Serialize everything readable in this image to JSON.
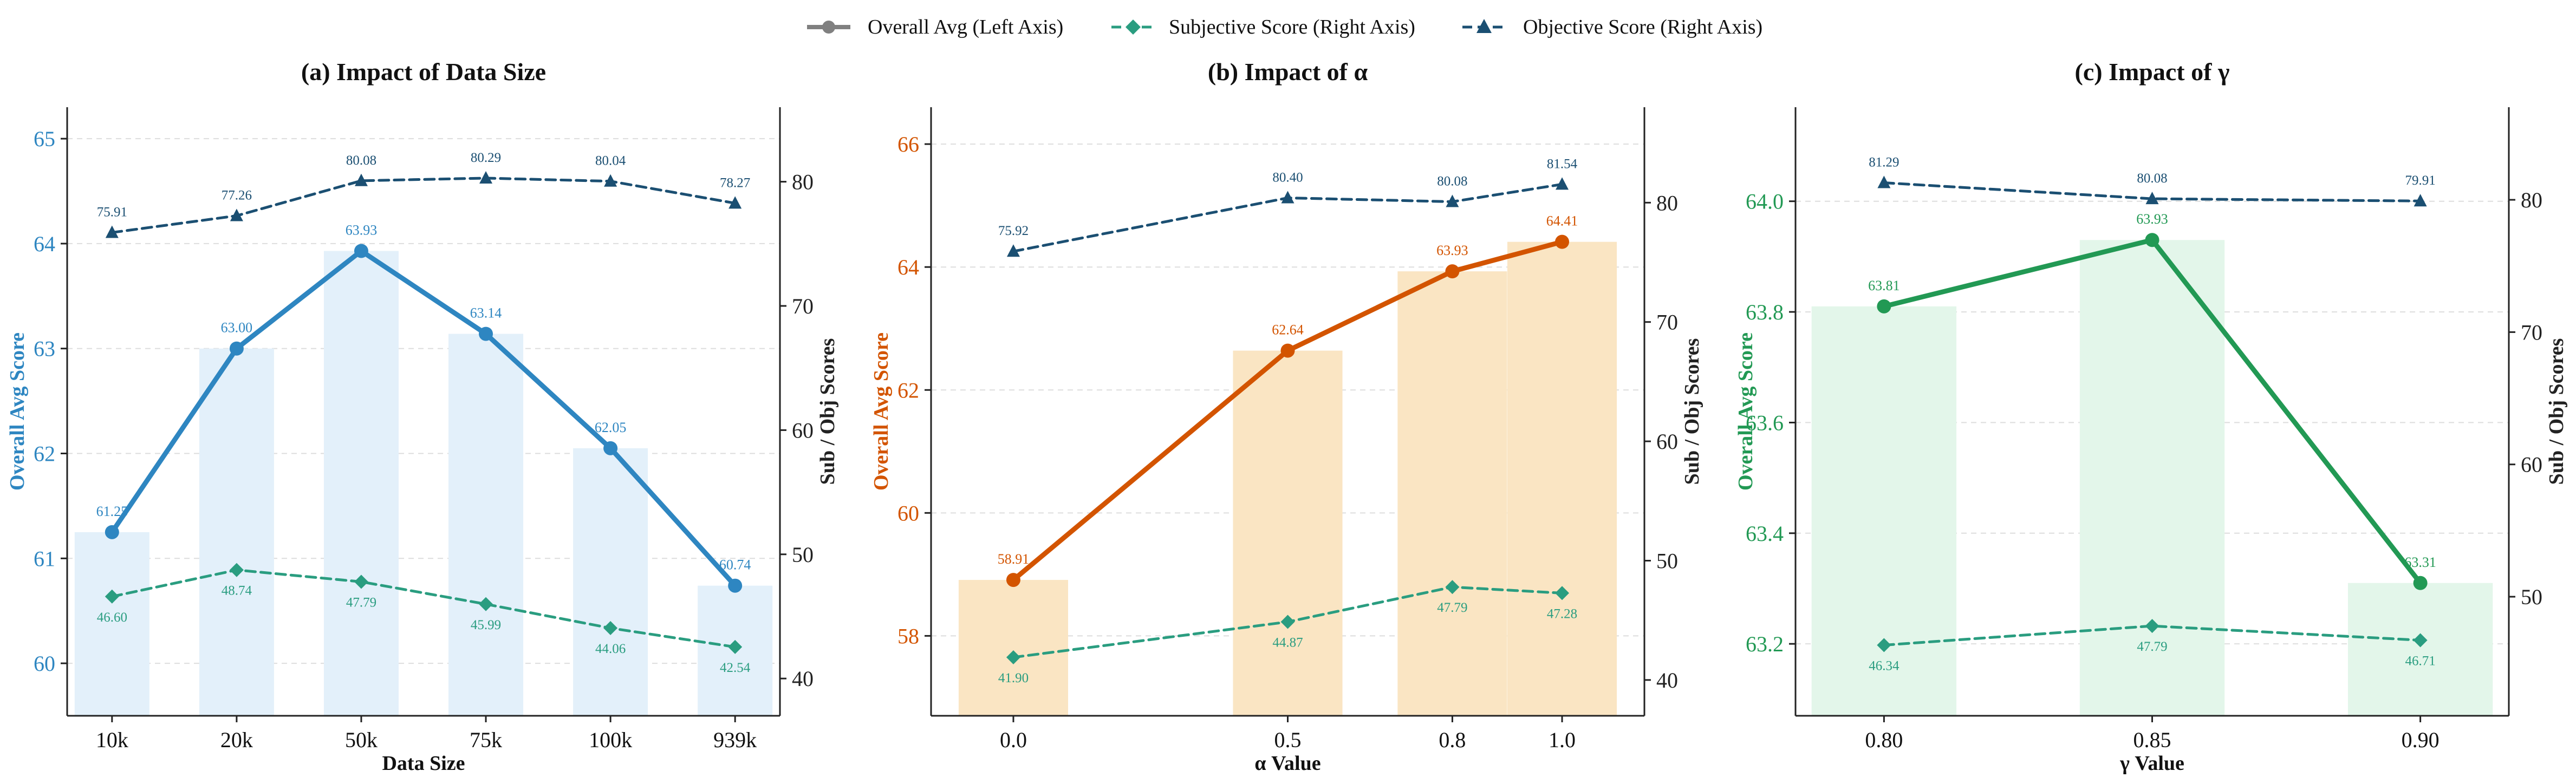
{
  "legend": {
    "items": [
      {
        "label": "Overall Avg (Left Axis)",
        "style": "solid",
        "marker": "circle",
        "color": "#808080"
      },
      {
        "label": "Subjective Score (Right Axis)",
        "style": "dashed",
        "marker": "diamond",
        "color": "#2a9d80"
      },
      {
        "label": "Objective Score (Right Axis)",
        "style": "dashed",
        "marker": "triangle",
        "color": "#1b4f72"
      }
    ]
  },
  "colors": {
    "subjective": "#2a9d80",
    "objective": "#1b4f72",
    "grid": "#dddddd"
  },
  "chart_data": [
    {
      "type": "bar+line",
      "title": "(a) Impact of Data Size",
      "xlabel": "Data Size",
      "ylabel_left": "Overall Avg Score",
      "ylabel_right": "Sub / Obj Scores",
      "categories": [
        "10k",
        "20k",
        "50k",
        "75k",
        "100k",
        "939k"
      ],
      "ylim_left": [
        59.5,
        65.3
      ],
      "yticks_left": [
        60,
        61,
        62,
        63,
        64,
        65
      ],
      "ylim_right": [
        37,
        86
      ],
      "yticks_right": [
        40,
        50,
        60,
        70,
        80
      ],
      "accent": "#2e86c1",
      "bar_color": "#e3f0fa",
      "overall": [
        61.25,
        63.0,
        63.93,
        63.14,
        62.05,
        60.74
      ],
      "overall_labels": [
        "61.25",
        "63.00",
        "63.93",
        "63.14",
        "62.05",
        "60.74"
      ],
      "subjective": [
        46.6,
        48.74,
        47.79,
        45.99,
        44.06,
        42.54
      ],
      "subjective_labels": [
        "46.60",
        "48.74",
        "47.79",
        "45.99",
        "44.06",
        "42.54"
      ],
      "objective": [
        75.91,
        77.26,
        80.08,
        80.29,
        80.04,
        78.27
      ],
      "objective_labels": [
        "75.91",
        "77.26",
        "80.08",
        "80.29",
        "80.04",
        "78.27"
      ]
    },
    {
      "type": "bar+line",
      "title": "(b) Impact of α",
      "xlabel": "α Value",
      "ylabel_left": "Overall Avg Score",
      "ylabel_right": "Sub / Obj Scores",
      "categories": [
        "0.0",
        "0.5",
        "0.8",
        "1.0"
      ],
      "ylim_left": [
        56.7,
        66.6
      ],
      "yticks_left": [
        58,
        60,
        62,
        64,
        66
      ],
      "ylim_right": [
        37,
        88
      ],
      "yticks_right": [
        40,
        50,
        60,
        70,
        80
      ],
      "accent": "#d35400",
      "bar_color": "#fae5c3",
      "overall": [
        58.91,
        62.64,
        63.93,
        64.41
      ],
      "overall_labels": [
        "58.91",
        "62.64",
        "63.93",
        "64.41"
      ],
      "subjective": [
        41.9,
        44.87,
        47.79,
        47.28
      ],
      "subjective_labels": [
        "41.90",
        "44.87",
        "47.79",
        "47.28"
      ],
      "objective": [
        75.92,
        80.4,
        80.08,
        81.54
      ],
      "objective_labels": [
        "75.92",
        "80.40",
        "80.08",
        "81.54"
      ]
    },
    {
      "type": "bar+line",
      "title": "(c) Impact of γ",
      "xlabel": "γ Value",
      "ylabel_left": "Overall Avg Score",
      "ylabel_right": "Sub / Obj Scores",
      "categories": [
        "0.80",
        "0.85",
        "0.90"
      ],
      "ylim_left": [
        63.07,
        64.17
      ],
      "yticks_left": [
        "63.2",
        "63.4",
        "63.6",
        "63.8",
        "64.0"
      ],
      "ylim_right": [
        41,
        87
      ],
      "yticks_right": [
        50,
        60,
        70,
        80
      ],
      "accent": "#229954",
      "bar_color": "#e3f6ea",
      "overall": [
        63.81,
        63.93,
        63.31
      ],
      "overall_labels": [
        "63.81",
        "63.93",
        "63.31"
      ],
      "subjective": [
        46.34,
        47.79,
        46.71
      ],
      "subjective_labels": [
        "46.34",
        "47.79",
        "46.71"
      ],
      "objective": [
        81.29,
        80.08,
        79.91
      ],
      "objective_labels": [
        "81.29",
        "80.08",
        "79.91"
      ]
    }
  ]
}
